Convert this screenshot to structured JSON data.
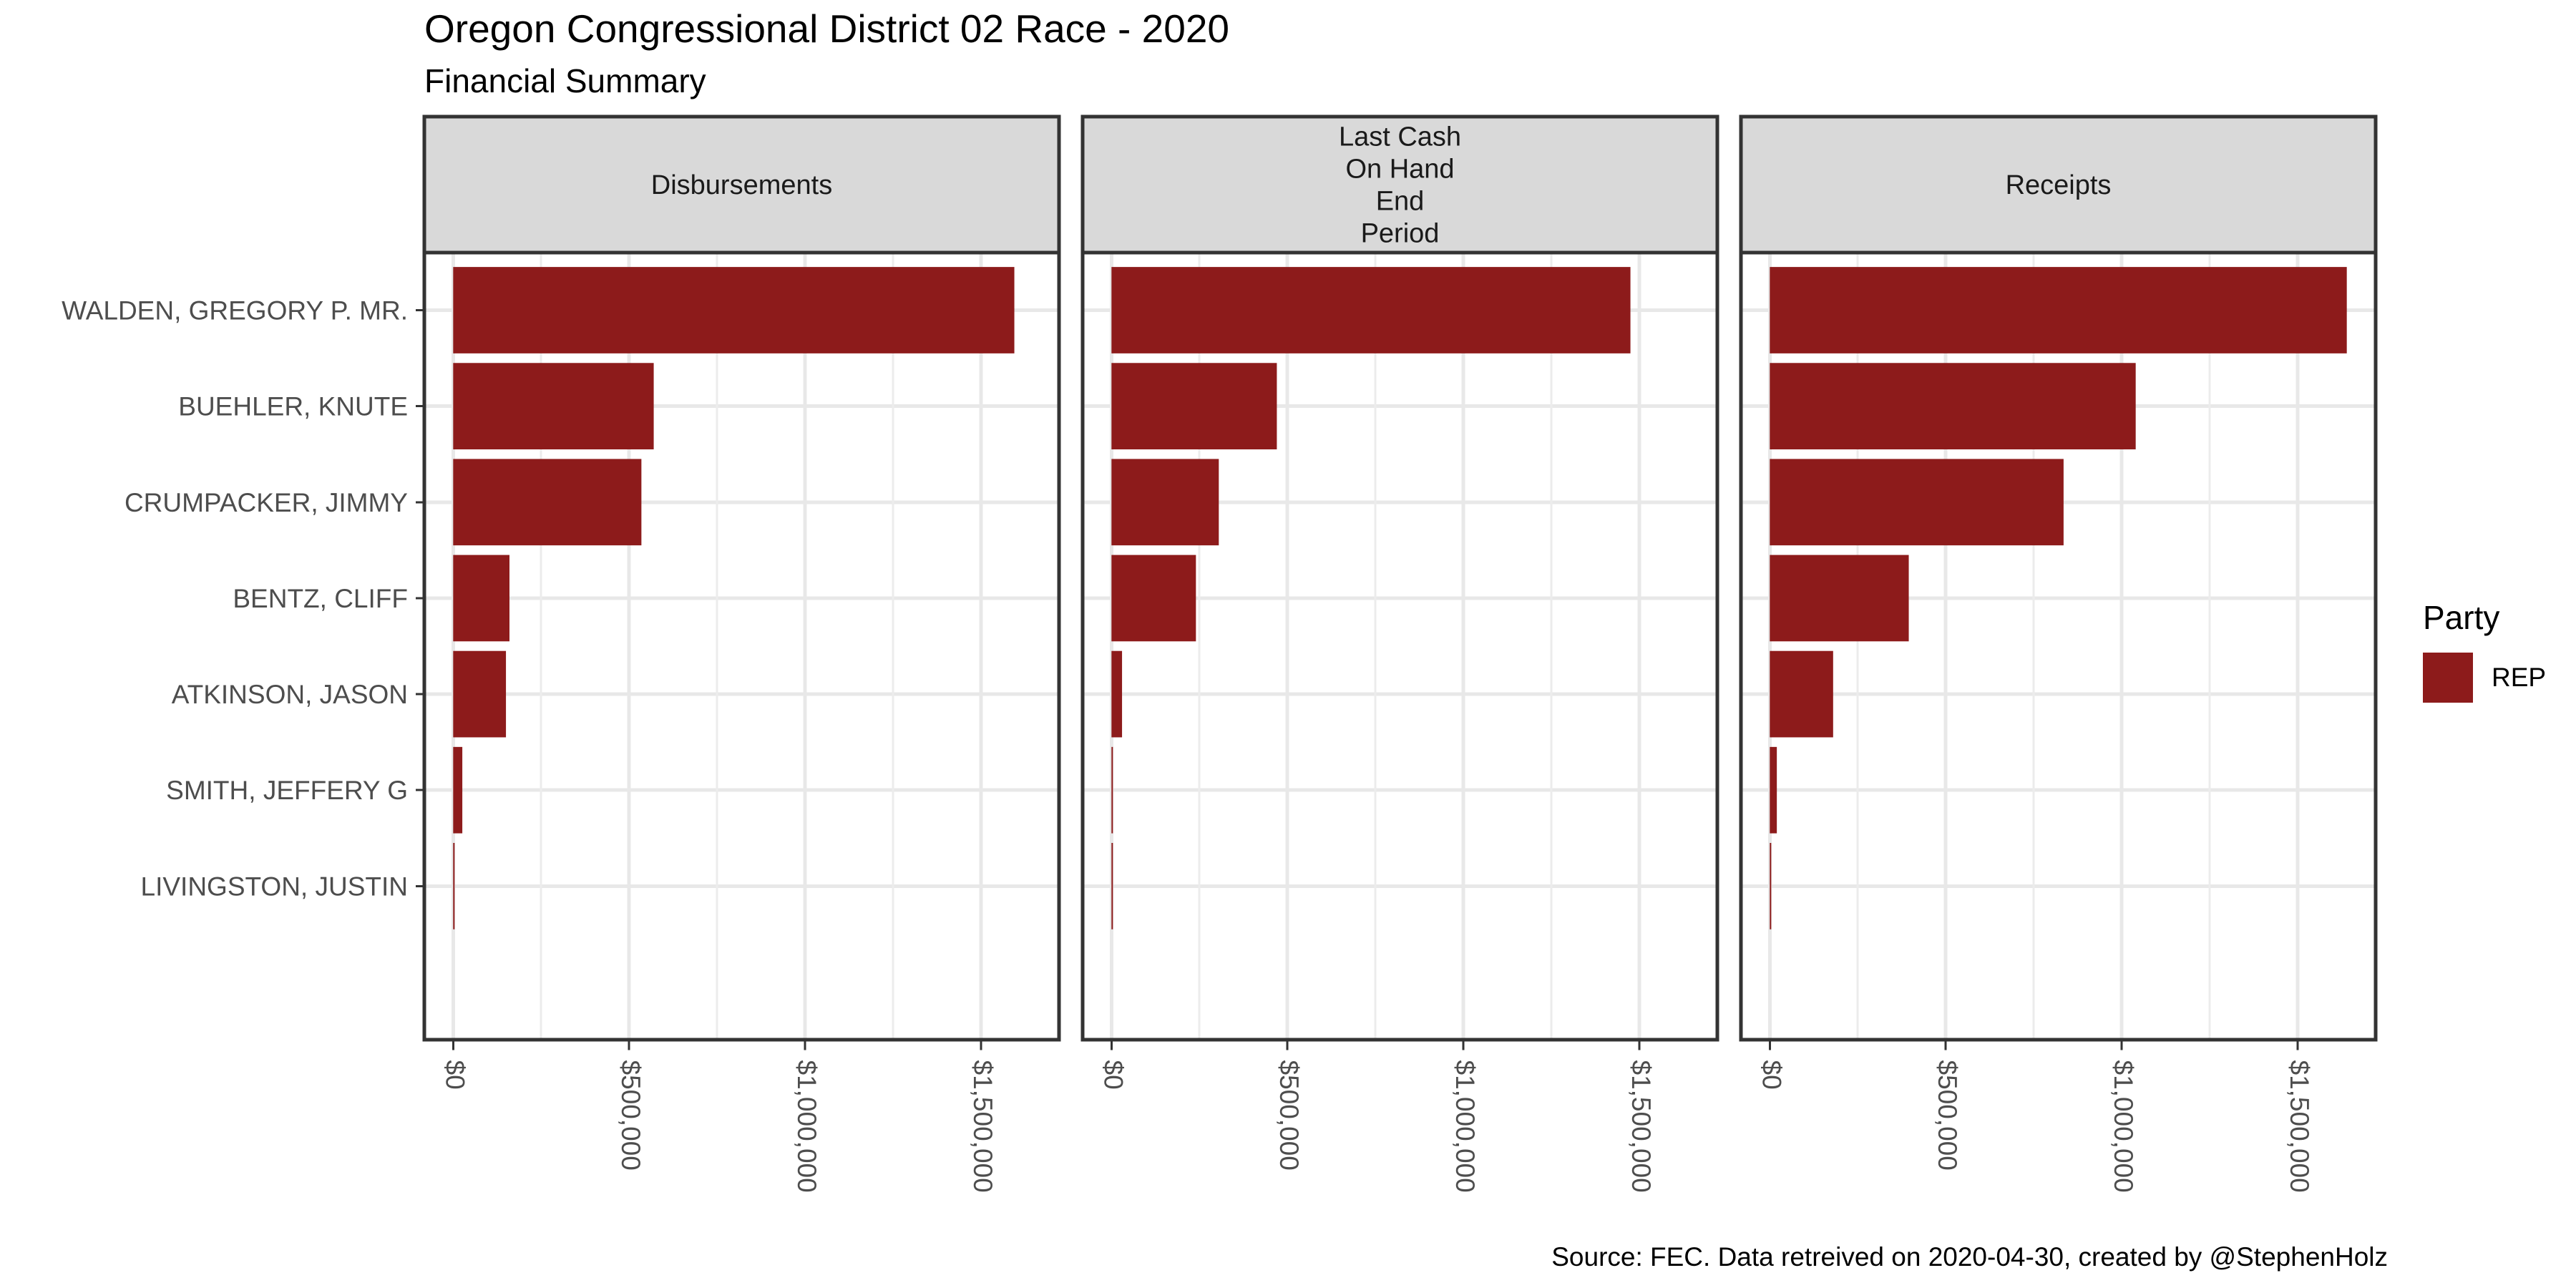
{
  "title": "Oregon Congressional District 02 Race - 2020",
  "subtitle": "Financial Summary",
  "caption": "Source: FEC. Data retreived on 2020-04-30, created by @StephenHolz",
  "legend": {
    "title": "Party",
    "items": [
      {
        "label": "REP",
        "color": "#8D1B1B"
      }
    ]
  },
  "colors": {
    "bar": "#8D1B1B",
    "strip_fill": "#D9D9D9",
    "panel_border": "#333333",
    "grid_major": "#E8E8E8",
    "grid_minor": "#ECECEC",
    "tick_mark": "#333333",
    "axis_text": "#4D4D4D",
    "background": "#FFFFFF"
  },
  "chart_data": {
    "type": "bar",
    "orientation": "horizontal",
    "title": "Oregon Congressional District 02 Race - 2020",
    "subtitle": "Financial Summary",
    "categories": [
      "WALDEN, GREGORY P. MR.",
      "BUEHLER, KNUTE",
      "CRUMPACKER, JIMMY",
      "BENTZ, CLIFF",
      "ATKINSON, JASON",
      "SMITH, JEFFERY G",
      "LIVINGSTON, JUSTIN"
    ],
    "facets": [
      {
        "label": "Disbursements",
        "label_lines": [
          "Disbursements"
        ],
        "values": [
          1595000,
          570000,
          535000,
          160000,
          150000,
          26000,
          4000
        ]
      },
      {
        "label": "Last Cash On Hand End Period",
        "label_lines": [
          "Last Cash",
          "On Hand",
          "End",
          "Period"
        ],
        "values": [
          1475000,
          470000,
          305000,
          240000,
          30000,
          2000,
          3000
        ]
      },
      {
        "label": "Receipts",
        "label_lines": [
          "Receipts"
        ],
        "values": [
          1640000,
          1040000,
          835000,
          395000,
          180000,
          20000,
          3000
        ]
      }
    ],
    "series_name": "REP",
    "xlabel": "",
    "ylabel": "",
    "xticks": [
      0,
      500000,
      1000000,
      1500000
    ],
    "xtick_labels": [
      "$0",
      "$500,000",
      "$1,000,000",
      "$1,500,000"
    ],
    "xminor_step": 250000,
    "xmax_data": 1640000,
    "x_expand": 0.05,
    "grid": true,
    "legend_position": "right",
    "legend_title": "Party"
  }
}
